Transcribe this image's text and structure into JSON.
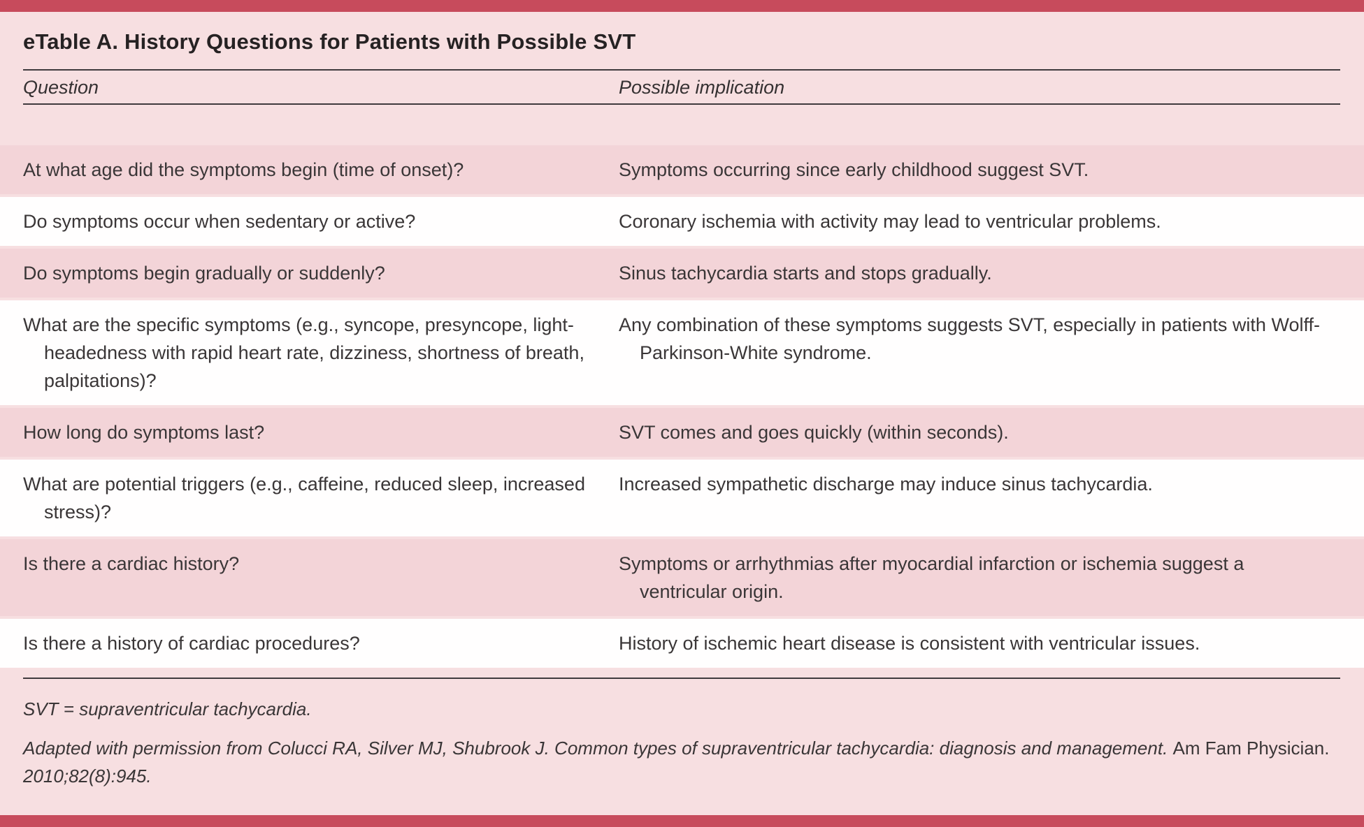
{
  "page": {
    "title": "eTable A. History Questions for Patients with Possible SVT",
    "colors": {
      "accent_bar": "#c74b5c",
      "page_bg": "#f7dfe1",
      "row_pink": "#f3d4d8",
      "row_white": "#fffefe",
      "text": "#3a3637",
      "rule": "#3f3a3d"
    }
  },
  "table": {
    "columns": [
      {
        "label": "Question"
      },
      {
        "label": "Possible implication"
      }
    ],
    "rows": [
      {
        "shade": "pink",
        "question": "At what age did the symptoms begin (time of onset)?",
        "implication": "Symptoms occurring since early childhood suggest SVT."
      },
      {
        "shade": "white",
        "question": "Do symptoms occur when sedentary or active?",
        "implication": "Coronary ischemia with activity may lead to ventricular problems."
      },
      {
        "shade": "pink",
        "question": "Do symptoms begin gradually or suddenly?",
        "implication": "Sinus tachycardia starts and stops gradually."
      },
      {
        "shade": "white",
        "question": "What are the specific symptoms (e.g., syncope, presyncope, light-headedness with rapid heart rate, dizziness, shortness of breath, palpitations)?",
        "implication": "Any combination of these symptoms suggests SVT, especially in patients with Wolff-Parkinson-White syndrome."
      },
      {
        "shade": "pink",
        "question": "How long do symptoms last?",
        "implication": "SVT comes and goes quickly (within seconds)."
      },
      {
        "shade": "white",
        "question": "What are potential triggers (e.g., caffeine, reduced sleep, increased stress)?",
        "implication": "Increased sympathetic discharge may induce sinus tachycardia."
      },
      {
        "shade": "pink",
        "question": "Is there a cardiac history?",
        "implication": "Symptoms or arrhythmias after myocardial infarction or ischemia suggest a ventricular origin."
      },
      {
        "shade": "white",
        "question": "Is there a history of cardiac procedures?",
        "implication": "History of ischemic heart disease is consistent with ventricular issues."
      }
    ]
  },
  "footnotes": {
    "abbreviation": "SVT = supraventricular tachycardia.",
    "attribution_italic_1": "Adapted with permission from Colucci RA, Silver MJ, Shubrook J. Common types of supraventricular tachycardia: diagnosis and management.",
    "attribution_roman": "Am Fam Physician.",
    "attribution_italic_2": "2010;82(8):945."
  }
}
